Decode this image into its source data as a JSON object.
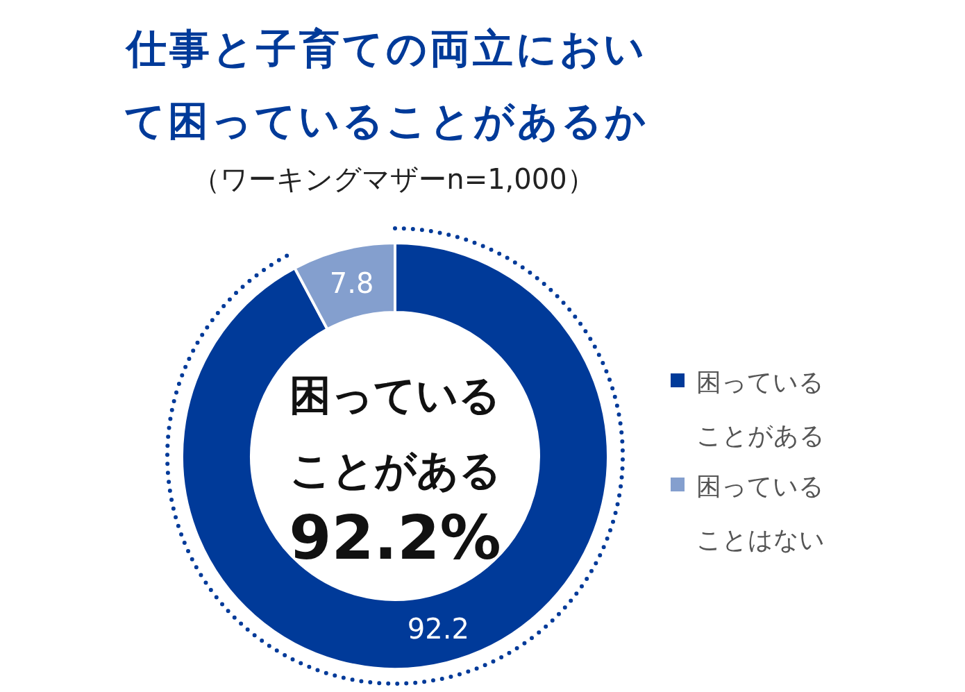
{
  "chart_data": {
    "type": "donut",
    "title": "仕事と子育ての両立において困っていることがあるか",
    "subtitle": "（ワーキングマザーn=1,000）",
    "categories": [
      "困っていることがある",
      "困っていることはない"
    ],
    "values": [
      92.2,
      7.8
    ],
    "colors": [
      "#003a99",
      "#849fce"
    ],
    "data_labels": true,
    "annotations": [
      "困っていることがある",
      "92.2%"
    ],
    "legend": "right"
  }
}
